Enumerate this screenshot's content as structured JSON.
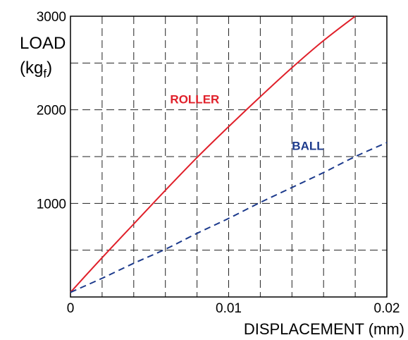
{
  "chart_data": {
    "type": "line",
    "xlabel": "DISPLACEMENT (mm)",
    "ylabel": {
      "line1": "LOAD",
      "line2_main": "(kg",
      "line2_sub": "f",
      "line2_end": ")"
    },
    "xlim": [
      0,
      0.02
    ],
    "ylim": [
      0,
      3000
    ],
    "x_ticks": [
      {
        "value": 0,
        "label": "0"
      },
      {
        "value": 0.01,
        "label": "0.01"
      },
      {
        "value": 0.02,
        "label": "0.02"
      }
    ],
    "y_ticks": [
      {
        "value": 1000,
        "label": "1000"
      },
      {
        "value": 2000,
        "label": "2000"
      },
      {
        "value": 3000,
        "label": "3000"
      }
    ],
    "grid": {
      "x_step": 0.002,
      "y_step": 500,
      "style": "dashed"
    },
    "series": [
      {
        "name": "ROLLER",
        "color": "#e0202a",
        "dash": "solid",
        "x": [
          0,
          0.002,
          0.004,
          0.006,
          0.008,
          0.01,
          0.012,
          0.014,
          0.016,
          0.018
        ],
        "y": [
          50,
          420,
          780,
          1140,
          1490,
          1820,
          2140,
          2450,
          2740,
          3000
        ]
      },
      {
        "name": "BALL",
        "color": "#1c3a8c",
        "dash": "dashed",
        "x": [
          0,
          0.002,
          0.004,
          0.006,
          0.008,
          0.01,
          0.012,
          0.014,
          0.016,
          0.018,
          0.02
        ],
        "y": [
          50,
          200,
          360,
          510,
          680,
          840,
          1010,
          1170,
          1330,
          1500,
          1650
        ]
      }
    ],
    "annotations": [
      {
        "text": "ROLLER",
        "series": "ROLLER",
        "x": 0.0063,
        "y": 2070
      },
      {
        "text": "BALL",
        "series": "BALL",
        "x": 0.014,
        "y": 1570
      }
    ]
  }
}
